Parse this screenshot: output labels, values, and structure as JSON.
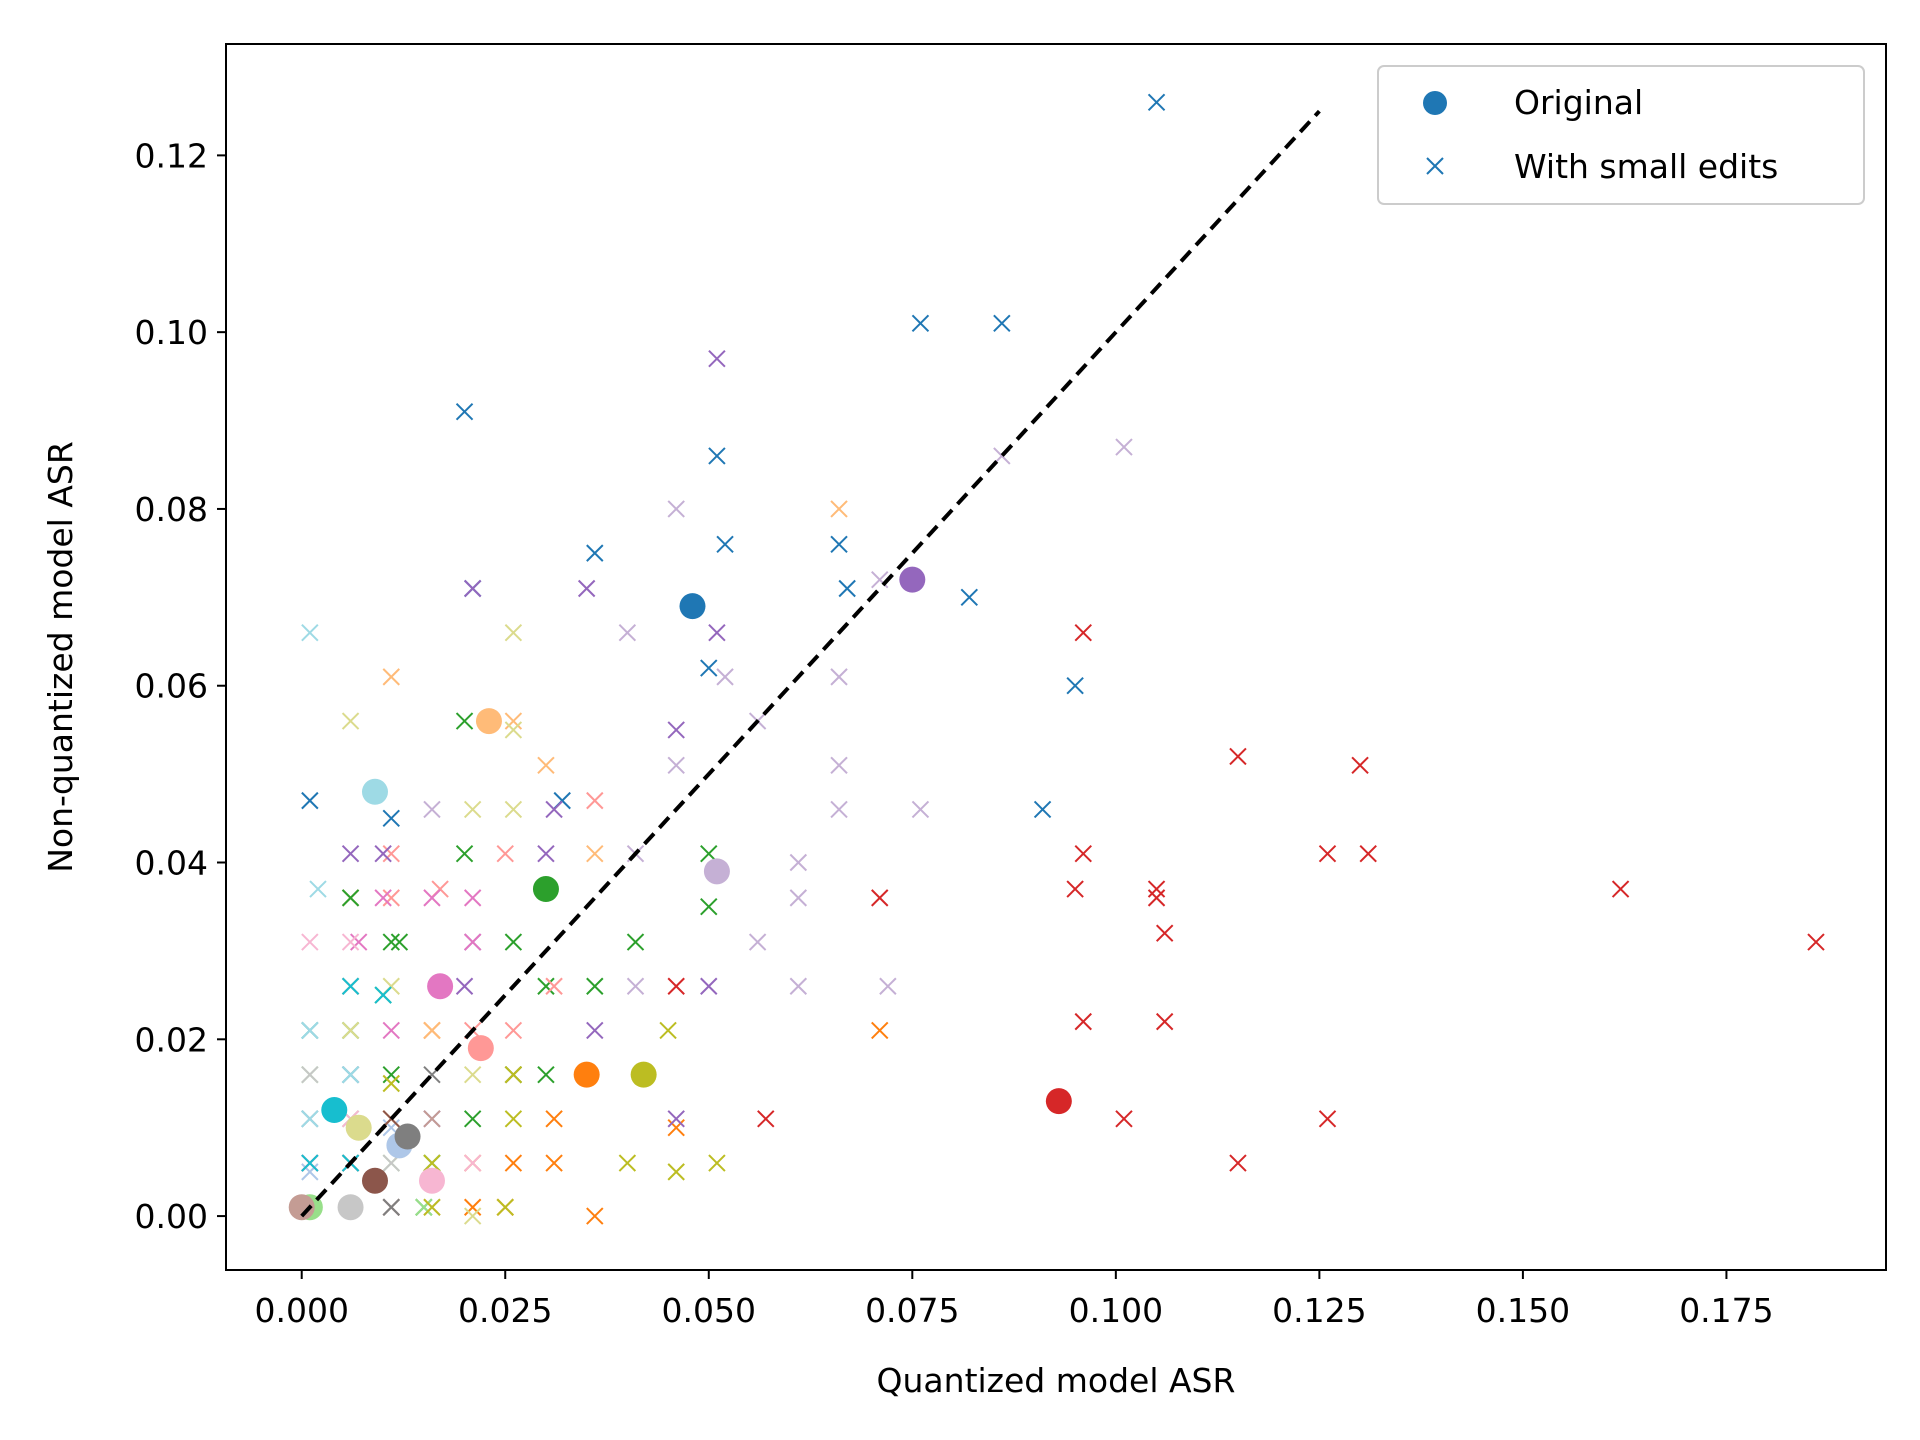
{
  "chart_data": {
    "type": "scatter",
    "title": "",
    "xlabel": "Quantized model ASR",
    "ylabel": "Non-quantized model ASR",
    "xlim": [
      -0.0093,
      0.1946
    ],
    "ylim": [
      -0.0061,
      0.1326
    ],
    "xticks": [
      0.0,
      0.025,
      0.05,
      0.075,
      0.1,
      0.125,
      0.15,
      0.175
    ],
    "xtick_labels": [
      "0.000",
      "0.025",
      "0.050",
      "0.075",
      "0.100",
      "0.125",
      "0.150",
      "0.175"
    ],
    "yticks": [
      0.0,
      0.02,
      0.04,
      0.06,
      0.08,
      0.1,
      0.12
    ],
    "ytick_labels": [
      "0.00",
      "0.02",
      "0.04",
      "0.06",
      "0.08",
      "0.10",
      "0.12"
    ],
    "grid": false,
    "legend": {
      "placement": "top-right",
      "entries": [
        {
          "label": "Original",
          "marker": "circle",
          "color": "#1f77b4"
        },
        {
          "label": "With small edits",
          "marker": "x",
          "color": "#1f77b4"
        }
      ]
    },
    "reference_line": {
      "style": "dashed",
      "color": "#000000",
      "from": [
        0.0,
        0.0
      ],
      "to": [
        0.125,
        0.125
      ]
    },
    "series": [
      {
        "color": "#1f77b4",
        "original": [
          [
            0.048,
            0.069
          ]
        ],
        "edits": [
          [
            0.105,
            0.126
          ],
          [
            0.076,
            0.101
          ],
          [
            0.086,
            0.101
          ],
          [
            0.02,
            0.091
          ],
          [
            0.051,
            0.086
          ],
          [
            0.021,
            0.071
          ],
          [
            0.052,
            0.076
          ],
          [
            0.036,
            0.075
          ],
          [
            0.066,
            0.076
          ],
          [
            0.067,
            0.071
          ],
          [
            0.082,
            0.07
          ],
          [
            0.05,
            0.062
          ],
          [
            0.095,
            0.06
          ],
          [
            0.091,
            0.046
          ],
          [
            0.001,
            0.047
          ],
          [
            0.011,
            0.045
          ],
          [
            0.032,
            0.047
          ],
          [
            0.001,
            0.011
          ],
          [
            0.001,
            0.006
          ]
        ]
      },
      {
        "color": "#aec7e8",
        "original": [
          [
            0.012,
            0.008
          ]
        ],
        "edits": [
          [
            0.001,
            0.021
          ],
          [
            0.006,
            0.016
          ],
          [
            0.011,
            0.01
          ],
          [
            0.001,
            0.005
          ],
          [
            0.006,
            0.001
          ]
        ]
      },
      {
        "color": "#ff7f0e",
        "original": [
          [
            0.035,
            0.016
          ]
        ],
        "edits": [
          [
            0.071,
            0.021
          ],
          [
            0.046,
            0.01
          ],
          [
            0.036,
            0.0
          ],
          [
            0.021,
            0.006
          ],
          [
            0.031,
            0.006
          ],
          [
            0.026,
            0.006
          ],
          [
            0.021,
            0.001
          ],
          [
            0.025,
            0.001
          ],
          [
            0.031,
            0.011
          ],
          [
            0.026,
            0.016
          ],
          [
            0.016,
            0.021
          ],
          [
            0.011,
            0.011
          ]
        ]
      },
      {
        "color": "#ffbb78",
        "original": [
          [
            0.023,
            0.056
          ]
        ],
        "edits": [
          [
            0.066,
            0.08
          ],
          [
            0.011,
            0.061
          ],
          [
            0.03,
            0.051
          ],
          [
            0.026,
            0.056
          ],
          [
            0.036,
            0.041
          ],
          [
            0.006,
            0.036
          ],
          [
            0.016,
            0.021
          ],
          [
            0.001,
            0.021
          ],
          [
            0.006,
            0.016
          ]
        ]
      },
      {
        "color": "#2ca02c",
        "original": [
          [
            0.03,
            0.037
          ]
        ],
        "edits": [
          [
            0.02,
            0.056
          ],
          [
            0.02,
            0.041
          ],
          [
            0.05,
            0.041
          ],
          [
            0.05,
            0.035
          ],
          [
            0.011,
            0.031
          ],
          [
            0.012,
            0.031
          ],
          [
            0.006,
            0.036
          ],
          [
            0.026,
            0.031
          ],
          [
            0.041,
            0.031
          ],
          [
            0.03,
            0.026
          ],
          [
            0.036,
            0.026
          ],
          [
            0.01,
            0.025
          ],
          [
            0.026,
            0.016
          ],
          [
            0.03,
            0.016
          ],
          [
            0.021,
            0.011
          ],
          [
            0.016,
            0.006
          ],
          [
            0.006,
            0.021
          ],
          [
            0.011,
            0.016
          ],
          [
            0.015,
            0.001
          ]
        ]
      },
      {
        "color": "#98df8a",
        "original": [
          [
            0.001,
            0.001
          ]
        ],
        "edits": [
          [
            0.006,
            0.026
          ],
          [
            0.001,
            0.016
          ],
          [
            0.006,
            0.011
          ],
          [
            0.011,
            0.006
          ],
          [
            0.016,
            0.006
          ],
          [
            0.015,
            0.001
          ]
        ]
      },
      {
        "color": "#d62728",
        "original": [
          [
            0.093,
            0.013
          ]
        ],
        "edits": [
          [
            0.096,
            0.066
          ],
          [
            0.115,
            0.052
          ],
          [
            0.13,
            0.051
          ],
          [
            0.096,
            0.041
          ],
          [
            0.126,
            0.041
          ],
          [
            0.131,
            0.041
          ],
          [
            0.095,
            0.037
          ],
          [
            0.105,
            0.037
          ],
          [
            0.105,
            0.036
          ],
          [
            0.071,
            0.036
          ],
          [
            0.106,
            0.032
          ],
          [
            0.162,
            0.037
          ],
          [
            0.186,
            0.031
          ],
          [
            0.096,
            0.022
          ],
          [
            0.106,
            0.022
          ],
          [
            0.046,
            0.026
          ],
          [
            0.057,
            0.011
          ],
          [
            0.101,
            0.011
          ],
          [
            0.126,
            0.011
          ],
          [
            0.115,
            0.006
          ]
        ]
      },
      {
        "color": "#ff9896",
        "original": [
          [
            0.022,
            0.019
          ]
        ],
        "edits": [
          [
            0.036,
            0.047
          ],
          [
            0.025,
            0.041
          ],
          [
            0.011,
            0.041
          ],
          [
            0.011,
            0.036
          ],
          [
            0.017,
            0.037
          ],
          [
            0.026,
            0.021
          ],
          [
            0.021,
            0.021
          ],
          [
            0.031,
            0.026
          ],
          [
            0.006,
            0.026
          ]
        ]
      },
      {
        "color": "#9467bd",
        "original": [
          [
            0.075,
            0.072
          ]
        ],
        "edits": [
          [
            0.051,
            0.097
          ],
          [
            0.021,
            0.071
          ],
          [
            0.035,
            0.071
          ],
          [
            0.051,
            0.066
          ],
          [
            0.046,
            0.055
          ],
          [
            0.031,
            0.046
          ],
          [
            0.03,
            0.041
          ],
          [
            0.006,
            0.041
          ],
          [
            0.01,
            0.041
          ],
          [
            0.021,
            0.031
          ],
          [
            0.02,
            0.026
          ],
          [
            0.05,
            0.026
          ],
          [
            0.036,
            0.021
          ],
          [
            0.046,
            0.011
          ],
          [
            0.016,
            0.011
          ],
          [
            0.001,
            0.006
          ]
        ]
      },
      {
        "color": "#c5b0d5",
        "original": [
          [
            0.051,
            0.039
          ]
        ],
        "edits": [
          [
            0.101,
            0.087
          ],
          [
            0.086,
            0.086
          ],
          [
            0.046,
            0.08
          ],
          [
            0.071,
            0.072
          ],
          [
            0.04,
            0.066
          ],
          [
            0.052,
            0.061
          ],
          [
            0.066,
            0.061
          ],
          [
            0.056,
            0.056
          ],
          [
            0.046,
            0.051
          ],
          [
            0.066,
            0.051
          ],
          [
            0.066,
            0.046
          ],
          [
            0.076,
            0.046
          ],
          [
            0.041,
            0.041
          ],
          [
            0.061,
            0.04
          ],
          [
            0.061,
            0.036
          ],
          [
            0.056,
            0.031
          ],
          [
            0.061,
            0.026
          ],
          [
            0.072,
            0.026
          ],
          [
            0.041,
            0.026
          ],
          [
            0.016,
            0.046
          ]
        ]
      },
      {
        "color": "#8c564b",
        "original": [
          [
            0.009,
            0.004
          ]
        ],
        "edits": [
          [
            0.011,
            0.001
          ],
          [
            0.006,
            0.006
          ],
          [
            0.011,
            0.011
          ]
        ]
      },
      {
        "color": "#c49c94",
        "original": [
          [
            0.0,
            0.001
          ]
        ],
        "edits": [
          [
            0.006,
            0.001
          ],
          [
            0.001,
            0.006
          ],
          [
            0.016,
            0.011
          ]
        ]
      },
      {
        "color": "#e377c2",
        "original": [
          [
            0.017,
            0.026
          ]
        ],
        "edits": [
          [
            0.007,
            0.031
          ],
          [
            0.01,
            0.036
          ],
          [
            0.016,
            0.036
          ],
          [
            0.011,
            0.021
          ],
          [
            0.006,
            0.016
          ],
          [
            0.021,
            0.031
          ],
          [
            0.021,
            0.036
          ]
        ]
      },
      {
        "color": "#f7b6d2",
        "original": [
          [
            0.016,
            0.004
          ]
        ],
        "edits": [
          [
            0.001,
            0.031
          ],
          [
            0.006,
            0.031
          ],
          [
            0.006,
            0.011
          ],
          [
            0.021,
            0.006
          ],
          [
            0.016,
            0.001
          ]
        ]
      },
      {
        "color": "#7f7f7f",
        "original": [
          [
            0.013,
            0.009
          ]
        ],
        "edits": [
          [
            0.011,
            0.001
          ],
          [
            0.016,
            0.016
          ],
          [
            0.006,
            0.006
          ]
        ]
      },
      {
        "color": "#c7c7c7",
        "original": [
          [
            0.006,
            0.001
          ]
        ],
        "edits": [
          [
            0.001,
            0.011
          ],
          [
            0.011,
            0.006
          ],
          [
            0.001,
            0.016
          ]
        ]
      },
      {
        "color": "#bcbd22",
        "original": [
          [
            0.042,
            0.016
          ]
        ],
        "edits": [
          [
            0.026,
            0.011
          ],
          [
            0.04,
            0.006
          ],
          [
            0.051,
            0.006
          ],
          [
            0.046,
            0.005
          ],
          [
            0.045,
            0.021
          ],
          [
            0.016,
            0.006
          ],
          [
            0.026,
            0.016
          ],
          [
            0.011,
            0.015
          ],
          [
            0.016,
            0.001
          ],
          [
            0.025,
            0.001
          ]
        ]
      },
      {
        "color": "#dbdb8d",
        "original": [
          [
            0.007,
            0.01
          ]
        ],
        "edits": [
          [
            0.026,
            0.066
          ],
          [
            0.006,
            0.056
          ],
          [
            0.026,
            0.055
          ],
          [
            0.021,
            0.046
          ],
          [
            0.026,
            0.046
          ],
          [
            0.011,
            0.026
          ],
          [
            0.021,
            0.016
          ],
          [
            0.006,
            0.021
          ],
          [
            0.021,
            0.0
          ]
        ]
      },
      {
        "color": "#17becf",
        "original": [
          [
            0.004,
            0.012
          ]
        ],
        "edits": [
          [
            0.006,
            0.026
          ],
          [
            0.01,
            0.025
          ],
          [
            0.001,
            0.021
          ],
          [
            0.006,
            0.016
          ],
          [
            0.001,
            0.006
          ],
          [
            0.006,
            0.006
          ]
        ]
      },
      {
        "color": "#9edae5",
        "original": [
          [
            0.009,
            0.048
          ]
        ],
        "edits": [
          [
            0.001,
            0.066
          ],
          [
            0.002,
            0.037
          ],
          [
            0.001,
            0.021
          ],
          [
            0.006,
            0.016
          ],
          [
            0.001,
            0.011
          ]
        ]
      }
    ]
  }
}
